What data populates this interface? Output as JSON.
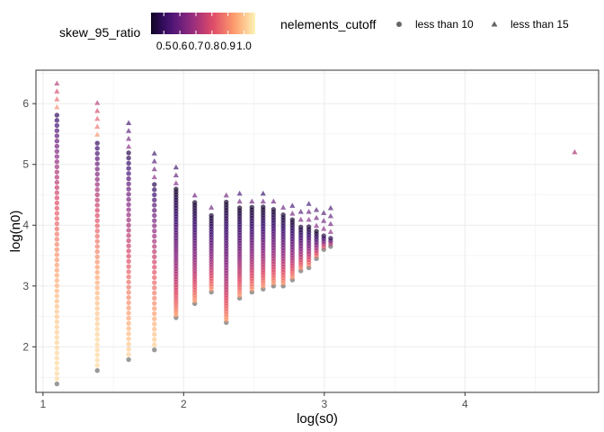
{
  "chart_data": {
    "type": "scatter",
    "xlabel": "log(s0)",
    "ylabel": "log(n0)",
    "xlim": [
      0.95,
      4.95
    ],
    "ylim": [
      1.25,
      6.55
    ],
    "x_ticks": [
      1,
      2,
      3,
      4
    ],
    "y_ticks": [
      2,
      3,
      4,
      5,
      6
    ],
    "grid": true,
    "color_legend": {
      "title": "skew_95_ratio",
      "ticks": [
        0.5,
        0.6,
        0.7,
        0.8,
        0.9,
        1.0
      ],
      "tick_labels": [
        "0.5",
        "0.6",
        "0.7",
        "0.8",
        "0.9",
        "1.0"
      ],
      "range": [
        0.42,
        1.07
      ],
      "palette": [
        "#000004",
        "#3b0f70",
        "#8c2981",
        "#de4968",
        "#fe9f6d",
        "#fcfdbf"
      ]
    },
    "shape_legend": {
      "title": "nelements_cutoff",
      "entries": [
        {
          "label": "less than 10",
          "shape": "circle",
          "color": "#666666"
        },
        {
          "label": "less than 15",
          "shape": "triangle",
          "color": "#666666"
        }
      ]
    },
    "columns": [
      {
        "x": 1.099,
        "ymin": 1.39,
        "ymax": 5.85,
        "tri_max": 6.38
      },
      {
        "x": 1.386,
        "ymin": 1.61,
        "ymax": 5.4,
        "tri_max": 6.09
      },
      {
        "x": 1.609,
        "ymin": 1.79,
        "ymax": 5.2,
        "tri_max": 5.72
      },
      {
        "x": 1.792,
        "ymin": 1.95,
        "ymax": 4.7,
        "tri_max": 5.2
      },
      {
        "x": 1.946,
        "ymin": 2.48,
        "ymax": 4.6,
        "tri_max": 4.97
      },
      {
        "x": 2.079,
        "ymin": 2.71,
        "ymax": 4.4,
        "tri_max": 4.6
      },
      {
        "x": 2.197,
        "ymin": 2.9,
        "ymax": 4.2,
        "tri_max": 4.4
      },
      {
        "x": 2.303,
        "ymin": 2.4,
        "ymax": 4.4,
        "tri_max": 4.6
      },
      {
        "x": 2.398,
        "ymin": 2.8,
        "ymax": 4.3,
        "tri_max": 4.55
      },
      {
        "x": 2.485,
        "ymin": 2.9,
        "ymax": 4.3,
        "tri_max": 4.5
      },
      {
        "x": 2.565,
        "ymin": 2.95,
        "ymax": 4.3,
        "tri_max": 4.52
      },
      {
        "x": 2.639,
        "ymin": 3.0,
        "ymax": 4.3,
        "tri_max": 4.48
      },
      {
        "x": 2.708,
        "ymin": 3.0,
        "ymax": 4.2,
        "tri_max": 4.4
      },
      {
        "x": 2.773,
        "ymin": 3.1,
        "ymax": 4.1,
        "tri_max": 4.35
      },
      {
        "x": 2.833,
        "ymin": 3.25,
        "ymax": 4.0,
        "tri_max": 4.3
      },
      {
        "x": 2.89,
        "ymin": 3.3,
        "ymax": 4.0,
        "tri_max": 4.4
      },
      {
        "x": 2.944,
        "ymin": 3.45,
        "ymax": 3.9,
        "tri_max": 4.35
      },
      {
        "x": 2.996,
        "ymin": 3.6,
        "ymax": 3.85,
        "tri_max": 4.32
      },
      {
        "x": 3.045,
        "ymin": 3.65,
        "ymax": 3.8,
        "tri_max": 4.4
      }
    ],
    "outlier": {
      "x": 4.78,
      "y": 5.2,
      "shape": "triangle",
      "color_value": 0.72
    }
  }
}
